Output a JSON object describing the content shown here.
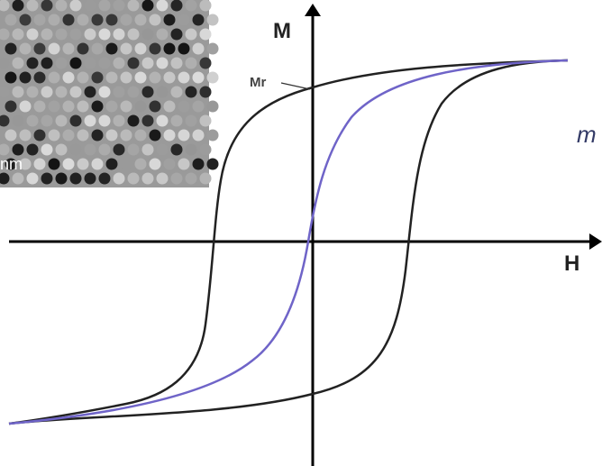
{
  "axis_labels": {
    "y": "M",
    "x": "H"
  },
  "annotation": "Mr",
  "inset_scale_label": "nm",
  "side_text": "m"
}
